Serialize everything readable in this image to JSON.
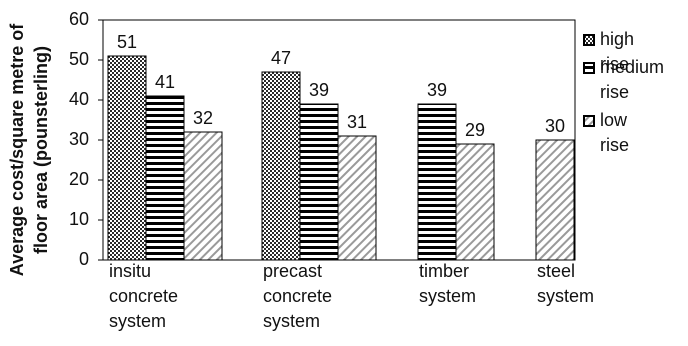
{
  "chart_data": {
    "type": "bar",
    "y_label": [
      "Average cost/square metre of",
      "floor area (pounsterling)"
    ],
    "categories": [
      "insitu concrete system",
      "precast concrete system",
      "timber system",
      "steel system"
    ],
    "series": [
      {
        "name": "high rise",
        "color": "#2a2a2a",
        "pattern": "checker",
        "values": [
          51,
          47,
          null,
          null
        ]
      },
      {
        "name": "medium rise",
        "color": "#000000",
        "pattern": "horizontal",
        "values": [
          41,
          39,
          39,
          null
        ]
      },
      {
        "name": "low rise",
        "color": "#9a9a9a",
        "pattern": "diagonal",
        "values": [
          32,
          31,
          29,
          30
        ]
      }
    ],
    "ylim": [
      0,
      60
    ],
    "yticks": [
      0,
      10,
      20,
      30,
      40,
      50,
      60
    ],
    "grid": false,
    "legend": "right"
  }
}
